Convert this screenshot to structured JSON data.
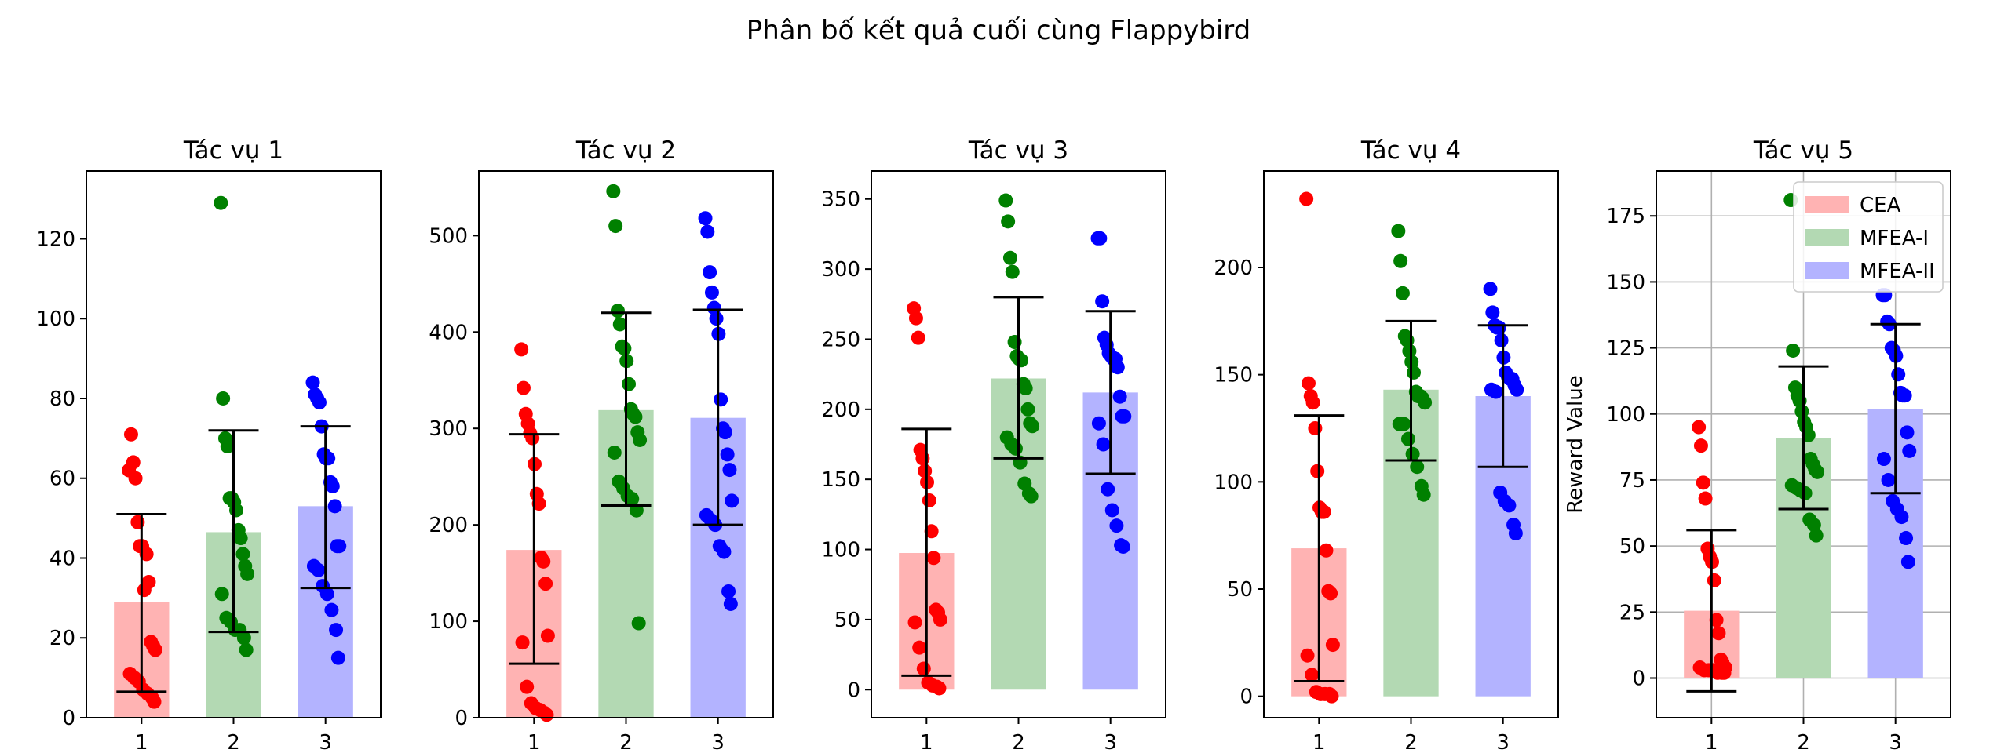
{
  "figure_title": "Phân bố kết quả cuối cùng Flappybird",
  "colors": {
    "cea_bar": "#ffb3b3",
    "mfea1_bar": "#b3d9b3",
    "mfea2_bar": "#b3b3ff",
    "cea_point": "#ff0000",
    "mfea1_point": "#008000",
    "mfea2_point": "#0000ff",
    "error_bar": "#000000"
  },
  "chart_data": [
    {
      "type": "bar",
      "title": "Tác vụ 1",
      "categories": [
        "1",
        "2",
        "3"
      ],
      "ylim": [
        0,
        137
      ],
      "yticks": [
        0,
        20,
        40,
        60,
        80,
        100,
        120
      ],
      "ylabel": "",
      "grid": false,
      "means": [
        29,
        46.5,
        53
      ],
      "err_low": [
        6.5,
        21.5,
        32.5
      ],
      "err_high": [
        51,
        72,
        73
      ],
      "points": [
        [
          62,
          71,
          64,
          60,
          49,
          43,
          43,
          32,
          41,
          34,
          19,
          18,
          17,
          11,
          10,
          9,
          7,
          6,
          5,
          4
        ],
        [
          129,
          80,
          70,
          68,
          55,
          55,
          54,
          52,
          47,
          45,
          41,
          38,
          36,
          31,
          25,
          24,
          22,
          22,
          20,
          17
        ],
        [
          84,
          81,
          80,
          79,
          73,
          66,
          65,
          65,
          59,
          58,
          53,
          43,
          43,
          38,
          37,
          33,
          31,
          27,
          22,
          15
        ]
      ]
    },
    {
      "type": "bar",
      "title": "Tác vụ 2",
      "categories": [
        "1",
        "2",
        "3"
      ],
      "ylim": [
        0,
        567
      ],
      "yticks": [
        0,
        100,
        200,
        300,
        400,
        500
      ],
      "ylabel": "",
      "grid": false,
      "means": [
        174,
        319,
        311
      ],
      "err_low": [
        56,
        220,
        200
      ],
      "err_high": [
        294,
        420,
        423
      ],
      "points": [
        [
          382,
          342,
          315,
          305,
          295,
          290,
          263,
          232,
          222,
          166,
          162,
          139,
          85,
          78,
          32,
          15,
          10,
          8,
          5,
          3
        ],
        [
          546,
          510,
          422,
          408,
          385,
          383,
          370,
          346,
          320,
          315,
          312,
          296,
          288,
          275,
          245,
          238,
          230,
          227,
          215,
          98
        ],
        [
          518,
          504,
          462,
          441,
          425,
          414,
          398,
          330,
          300,
          296,
          273,
          257,
          225,
          210,
          205,
          200,
          178,
          172,
          131,
          118
        ]
      ]
    },
    {
      "type": "bar",
      "title": "Tác vụ 3",
      "categories": [
        "1",
        "2",
        "3"
      ],
      "ylim": [
        -20,
        370
      ],
      "yticks": [
        0,
        50,
        100,
        150,
        200,
        250,
        300,
        350
      ],
      "ylabel": "",
      "grid": false,
      "means": [
        97.5,
        222,
        212
      ],
      "err_low": [
        10,
        165,
        154
      ],
      "err_high": [
        186,
        280,
        270
      ],
      "points": [
        [
          272,
          265,
          251,
          171,
          165,
          156,
          148,
          135,
          113,
          94,
          57,
          55,
          50,
          48,
          30,
          15,
          5,
          3,
          2,
          1
        ],
        [
          349,
          334,
          308,
          298,
          248,
          238,
          236,
          235,
          218,
          215,
          200,
          190,
          188,
          180,
          175,
          172,
          162,
          147,
          140,
          138
        ],
        [
          322,
          322,
          277,
          251,
          246,
          240,
          238,
          236,
          236,
          230,
          209,
          195,
          195,
          190,
          175,
          143,
          128,
          117,
          103,
          102
        ]
      ]
    },
    {
      "type": "bar",
      "title": "Tác vụ 4",
      "categories": [
        "1",
        "2",
        "3"
      ],
      "ylim": [
        -10,
        245
      ],
      "yticks": [
        0,
        50,
        100,
        150,
        200
      ],
      "ylabel": "",
      "grid": false,
      "means": [
        69,
        143,
        140
      ],
      "err_low": [
        7,
        110,
        107
      ],
      "err_high": [
        131,
        175,
        173
      ],
      "points": [
        [
          232,
          146,
          140,
          137,
          125,
          105,
          88,
          86,
          86,
          68,
          49,
          48,
          24,
          19,
          10,
          2,
          1,
          1,
          1,
          0
        ],
        [
          217,
          203,
          188,
          168,
          166,
          161,
          156,
          151,
          142,
          140,
          140,
          139,
          137,
          127,
          127,
          120,
          113,
          107,
          98,
          94
        ],
        [
          190,
          179,
          173,
          172,
          172,
          166,
          158,
          151,
          149,
          148,
          148,
          145,
          143,
          143,
          142,
          95,
          91,
          89,
          80,
          76
        ]
      ]
    },
    {
      "type": "bar",
      "title": "Tác vụ 5",
      "categories": [
        "1",
        "2",
        "3"
      ],
      "ylim": [
        -15,
        192
      ],
      "yticks": [
        0,
        25,
        50,
        75,
        100,
        125,
        150,
        175
      ],
      "ylabel": "Reward Value",
      "grid": true,
      "means": [
        25.5,
        91,
        102
      ],
      "err_low": [
        -5,
        64,
        70
      ],
      "err_high": [
        56,
        118,
        134
      ],
      "points": [
        [
          95,
          88,
          74,
          68,
          49,
          46,
          44,
          37,
          22,
          17,
          7,
          5,
          4,
          4,
          3,
          3,
          3,
          2,
          2,
          2
        ],
        [
          181,
          124,
          110,
          107,
          105,
          101,
          97,
          95,
          92,
          83,
          81,
          79,
          78,
          73,
          72,
          71,
          70,
          60,
          58,
          54
        ],
        [
          145,
          145,
          135,
          134,
          125,
          124,
          122,
          115,
          108,
          107,
          107,
          93,
          86,
          83,
          75,
          67,
          64,
          61,
          53,
          44
        ]
      ],
      "legend": {
        "location": "upper right",
        "entries": [
          {
            "label": "CEA",
            "color_key": "cea_bar"
          },
          {
            "label": "MFEA-I",
            "color_key": "mfea1_bar"
          },
          {
            "label": "MFEA-II",
            "color_key": "mfea2_bar"
          }
        ]
      }
    }
  ]
}
